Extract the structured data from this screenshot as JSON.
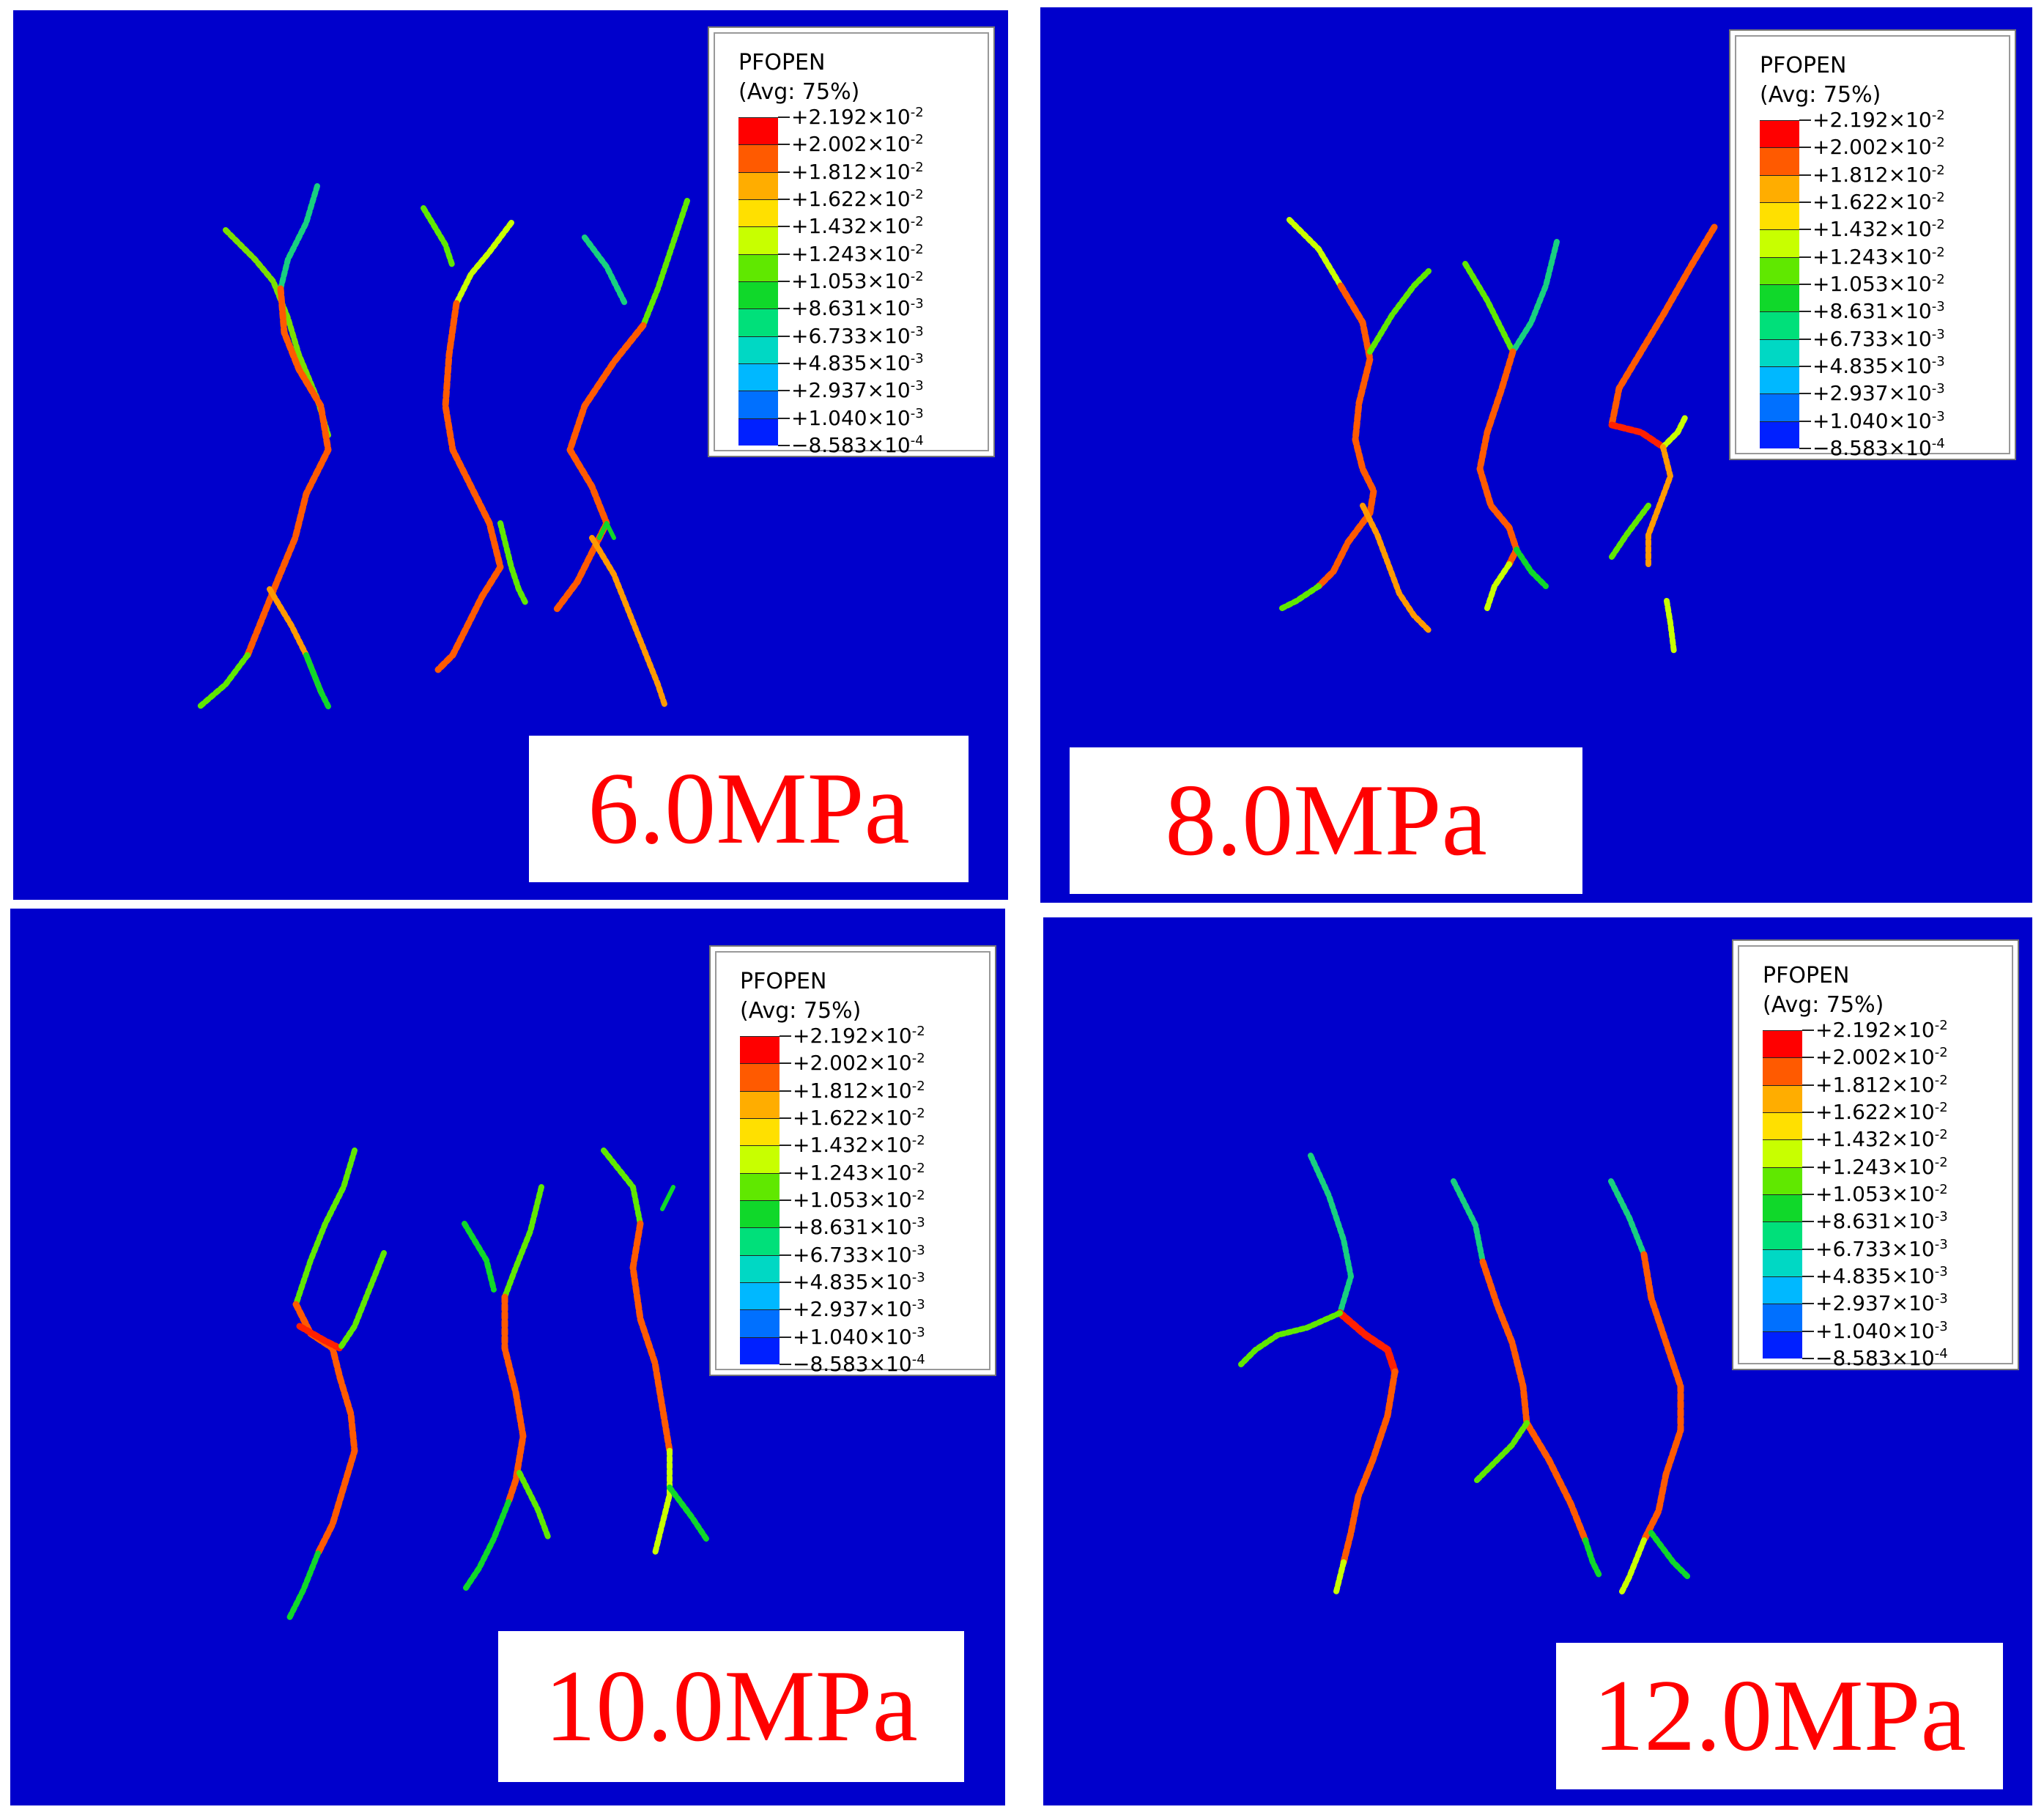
{
  "colors": {
    "background": "#0000cc",
    "label_text": "#ff0000"
  },
  "legend": {
    "title": "PFOPEN",
    "subtitle": "(Avg: 75%)",
    "values": [
      {
        "mant": "+2.192×10",
        "exp": "-2"
      },
      {
        "mant": "+2.002×10",
        "exp": "-2"
      },
      {
        "mant": "+1.812×10",
        "exp": "-2"
      },
      {
        "mant": "+1.622×10",
        "exp": "-2"
      },
      {
        "mant": "+1.432×10",
        "exp": "-2"
      },
      {
        "mant": "+1.243×10",
        "exp": "-2"
      },
      {
        "mant": "+1.053×10",
        "exp": "-2"
      },
      {
        "mant": "+8.631×10",
        "exp": "-3"
      },
      {
        "mant": "+6.733×10",
        "exp": "-3"
      },
      {
        "mant": "+4.835×10",
        "exp": "-3"
      },
      {
        "mant": "+2.937×10",
        "exp": "-3"
      },
      {
        "mant": "+1.040×10",
        "exp": "-3"
      },
      {
        "mant": "−8.583×10",
        "exp": "-4"
      }
    ],
    "swatches": [
      "#ff0000",
      "#ff5a00",
      "#ffad00",
      "#ffe000",
      "#c8ff00",
      "#60e800",
      "#10d82a",
      "#00e07a",
      "#00d8c4",
      "#00b8ff",
      "#0070ff",
      "#0020ff"
    ]
  },
  "panels": [
    {
      "label": "6.0MPa"
    },
    {
      "label": "8.0MPa"
    },
    {
      "label": "10.0MPa"
    },
    {
      "label": "12.0MPa"
    }
  ]
}
